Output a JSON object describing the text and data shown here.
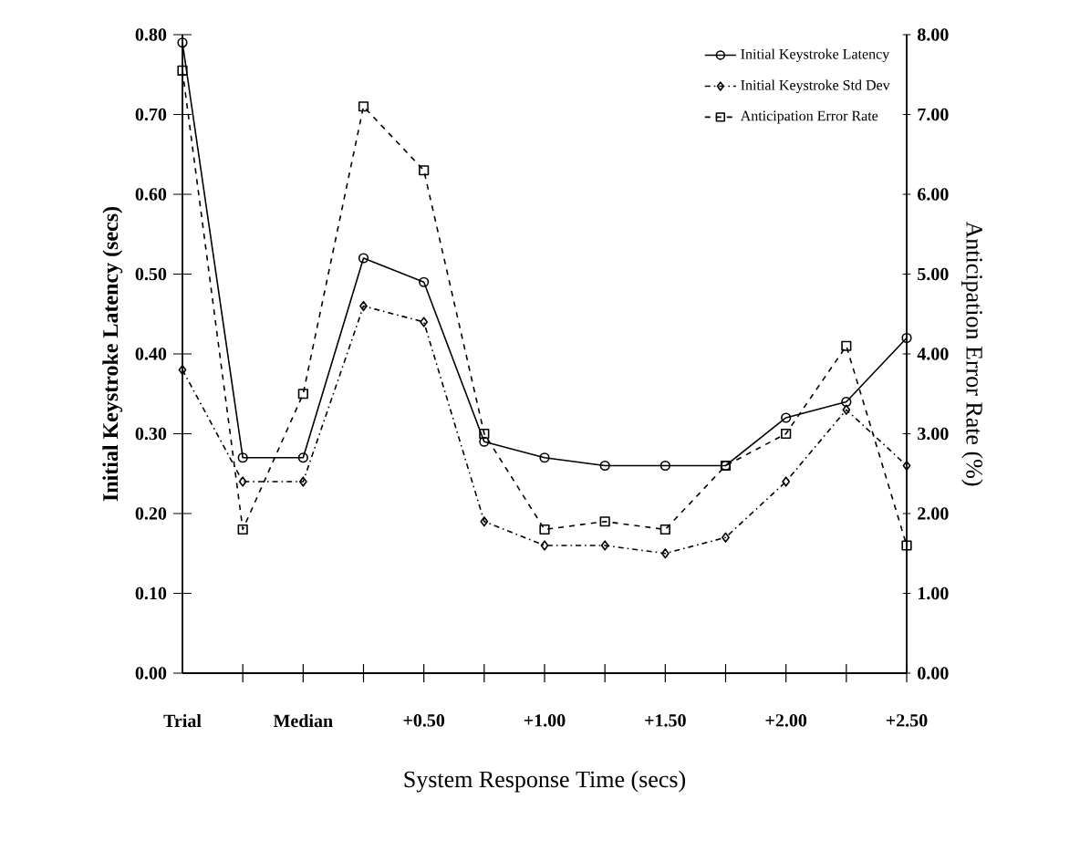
{
  "chart_data": {
    "type": "line",
    "categories": [
      "Trial",
      null,
      "Median",
      null,
      "+0.50",
      null,
      "+1.00",
      null,
      "+1.50",
      null,
      "+2.00",
      null,
      "+2.50"
    ],
    "xlabel": "System Response Time (secs)",
    "ylabel": "Initial Keystroke Latency (secs)",
    "y2label": "Anticipation Error Rate (%)",
    "ylim": [
      0,
      0.8
    ],
    "yticks": [
      {
        "value": 0,
        "label": "0.00"
      },
      {
        "value": 0.1,
        "label": "0.10"
      },
      {
        "value": 0.2,
        "label": "0.20"
      },
      {
        "value": 0.3,
        "label": "0.30"
      },
      {
        "value": 0.4,
        "label": "0.40"
      },
      {
        "value": 0.5,
        "label": "0.50"
      },
      {
        "value": 0.6,
        "label": "0.60"
      },
      {
        "value": 0.7,
        "label": "0.70"
      },
      {
        "value": 0.8,
        "label": "0.80"
      }
    ],
    "y2lim": [
      0,
      8
    ],
    "y2ticks": [
      {
        "value": 0,
        "label": "0.00"
      },
      {
        "value": 1,
        "label": "1.00"
      },
      {
        "value": 2,
        "label": "2.00"
      },
      {
        "value": 3,
        "label": "3.00"
      },
      {
        "value": 4,
        "label": "4.00"
      },
      {
        "value": 5,
        "label": "5.00"
      },
      {
        "value": 6,
        "label": "6.00"
      },
      {
        "value": 7,
        "label": "7.00"
      },
      {
        "value": 8,
        "label": "8.00"
      }
    ],
    "legend": "top right",
    "grid": false,
    "series": [
      {
        "name": "Initial Keystroke Latency",
        "color": "#000000",
        "marker": "circle",
        "line_style": "solid",
        "axis": "y",
        "values": [
          0.79,
          0.27,
          0.27,
          0.52,
          0.49,
          0.29,
          0.27,
          0.26,
          0.26,
          0.26,
          0.32,
          0.34,
          0.42
        ]
      },
      {
        "name": "Initial Keystroke Std Dev",
        "color": "#000000",
        "marker": "diamond",
        "line_style": "dashdot",
        "axis": "y",
        "values": [
          0.38,
          0.24,
          0.24,
          0.46,
          0.44,
          0.19,
          0.16,
          0.16,
          0.15,
          0.17,
          0.24,
          0.33,
          0.26
        ]
      },
      {
        "name": "Anticipation Error Rate",
        "color": "#000000",
        "marker": "square",
        "line_style": "dashed",
        "axis": "y2",
        "values": [
          7.55,
          1.8,
          3.5,
          7.1,
          6.3,
          3.0,
          1.8,
          1.9,
          1.8,
          2.6,
          3.0,
          4.1,
          1.6
        ]
      }
    ]
  }
}
